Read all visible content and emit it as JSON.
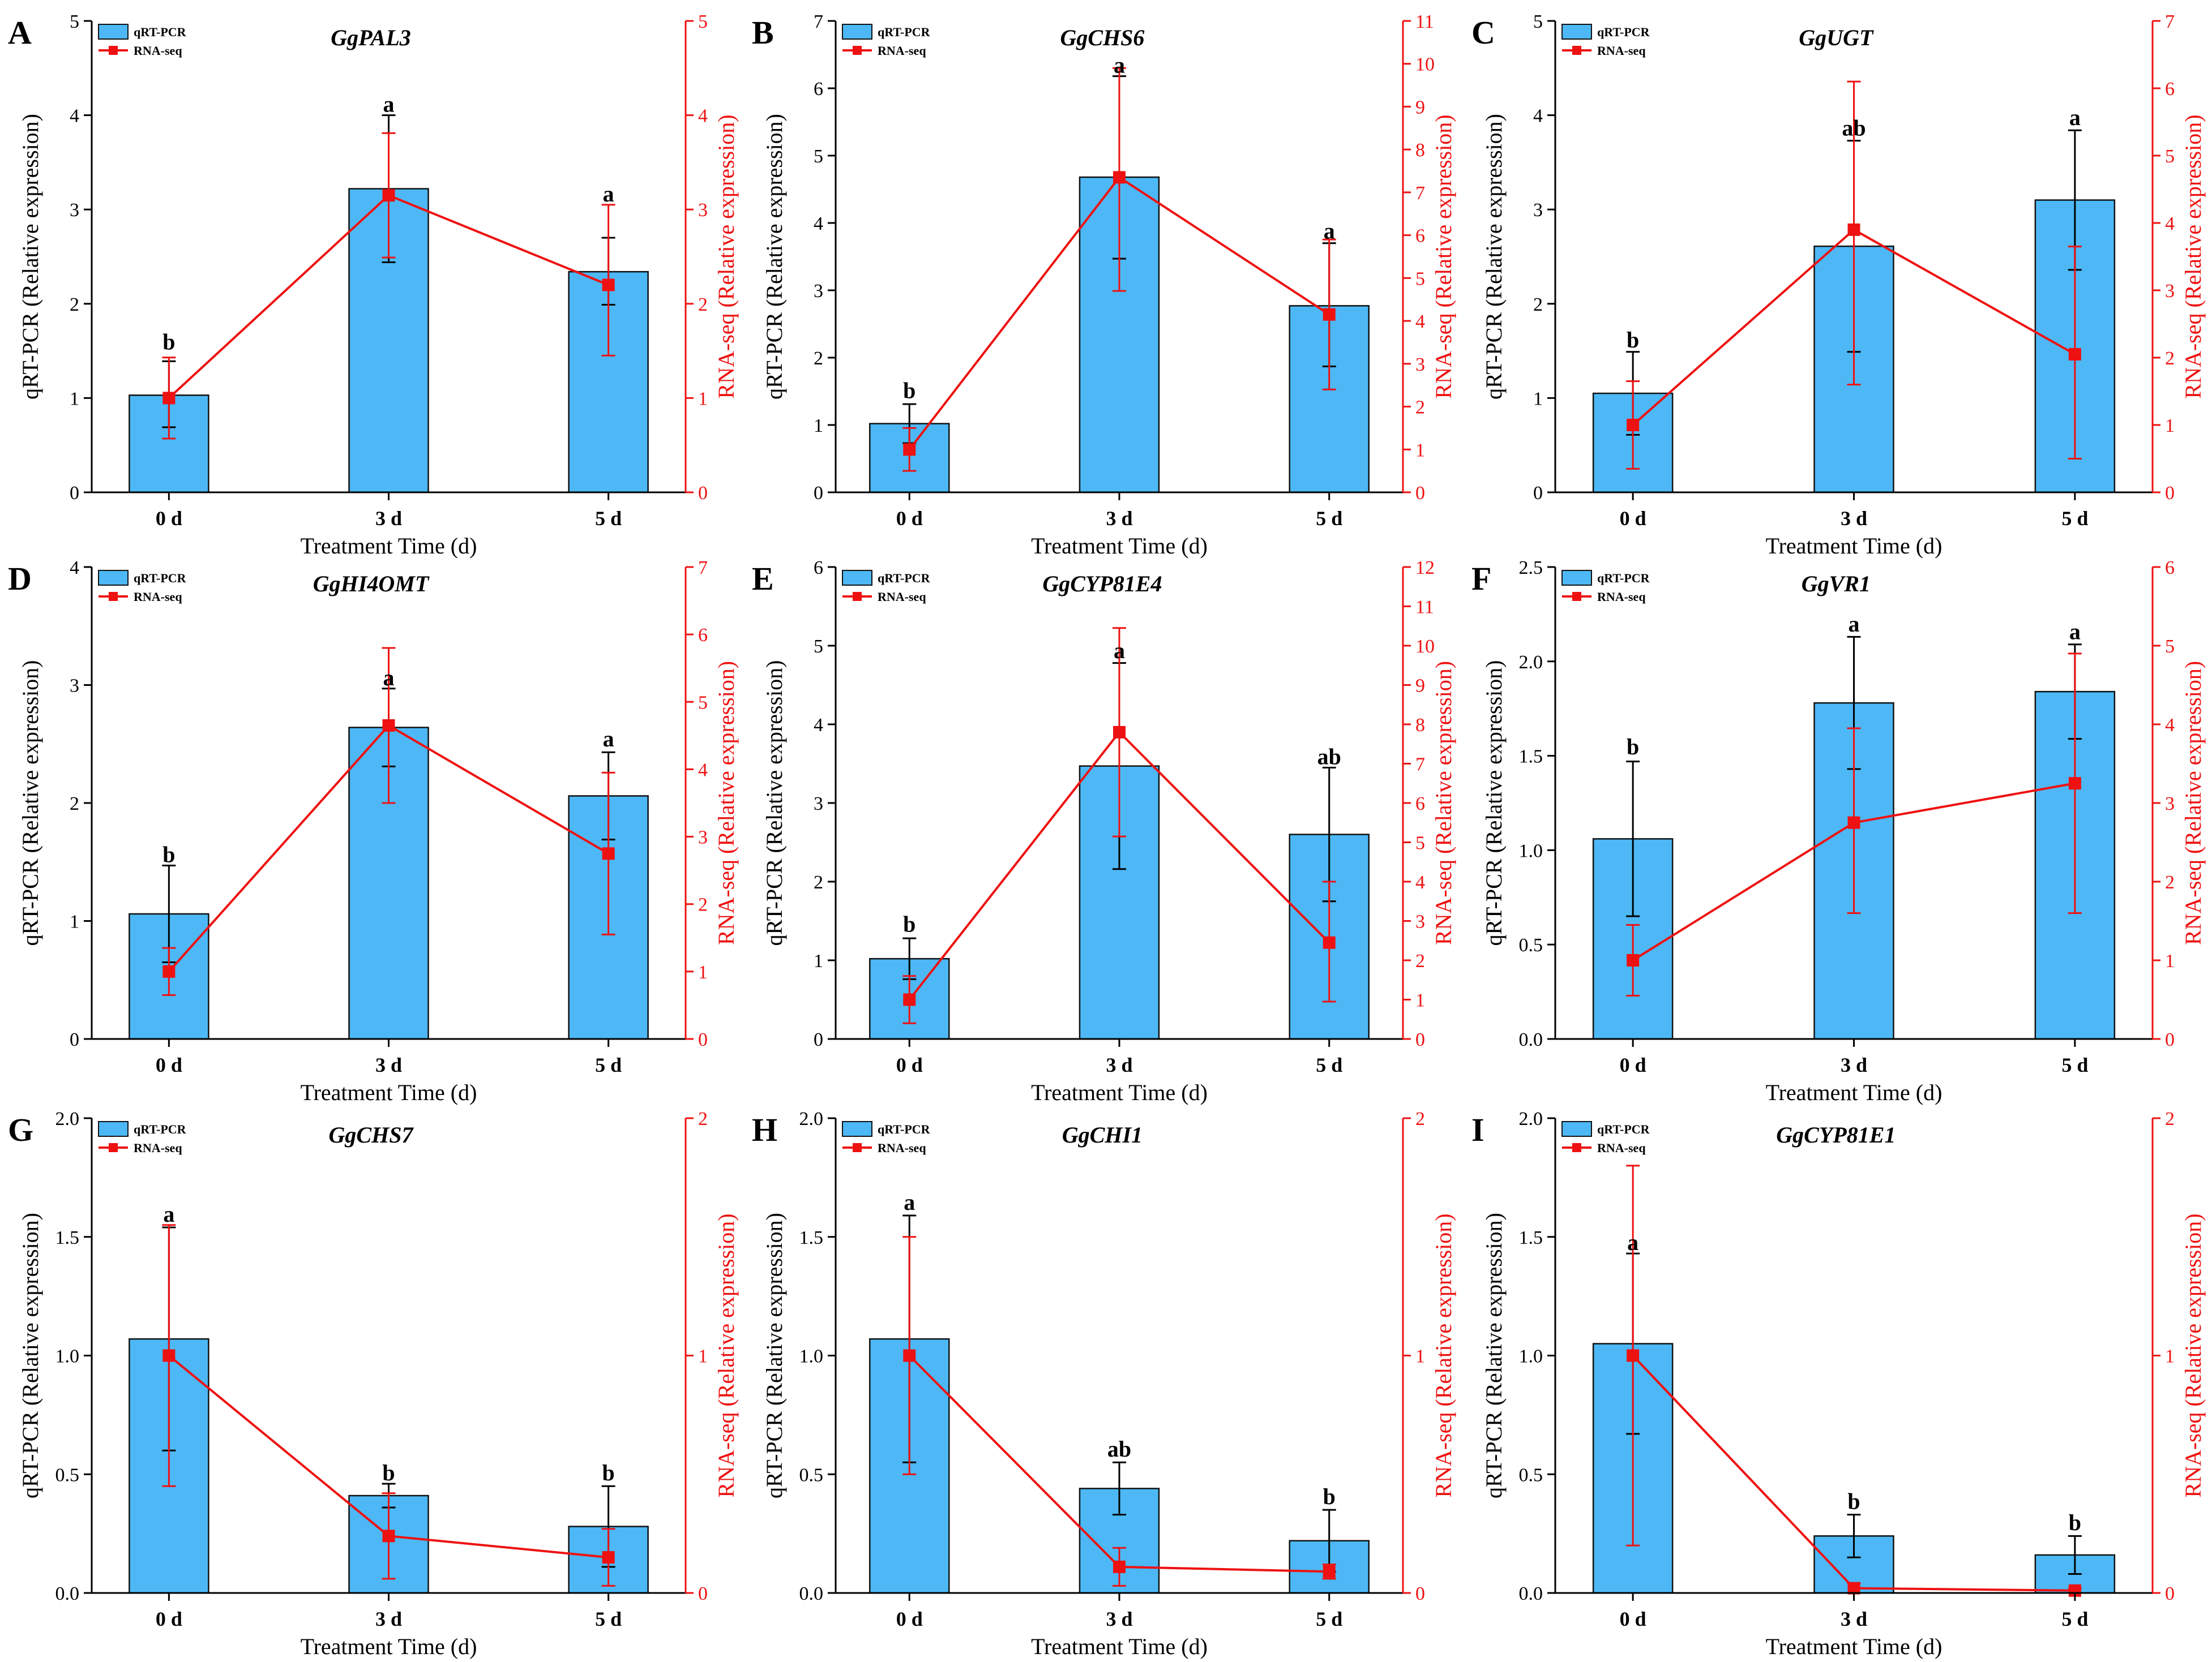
{
  "colors": {
    "bar": "#4DB8F5",
    "bar_stroke": "#111111",
    "line": "#EE1111",
    "axis": "#000000",
    "right_axis": "#EE1111"
  },
  "chart_data": [
    {
      "type": "bar+line",
      "panel": "A",
      "title": "GgPAL3",
      "xlabel": "Treatment Time (d)",
      "ylabel_left": "qRT-PCR (Relative expression)",
      "ylabel_right": "RNA-seq (Relative expression)",
      "categories": [
        "0 d",
        "3 d",
        "5 d"
      ],
      "left_ylim": [
        0,
        5
      ],
      "left_ticks": [
        0,
        1,
        2,
        3,
        4,
        5
      ],
      "left_tick_labels": [
        "0",
        "1",
        "2",
        "3",
        "4",
        "5"
      ],
      "right_ylim": [
        0,
        5
      ],
      "right_ticks": [
        0,
        1,
        2,
        3,
        4,
        5
      ],
      "right_tick_labels": [
        "0",
        "1",
        "2",
        "3",
        "4",
        "5"
      ],
      "series": [
        {
          "name": "qRT-PCR",
          "kind": "bar",
          "values": [
            1.03,
            3.22,
            2.34
          ],
          "err_lo": [
            0.69,
            2.44,
            1.99
          ],
          "err_hi": [
            1.39,
            4.0,
            2.7
          ]
        },
        {
          "name": "RNA-seq",
          "kind": "line",
          "values": [
            1.0,
            3.15,
            2.2
          ],
          "err_lo": [
            0.57,
            2.49,
            1.45
          ],
          "err_hi": [
            1.43,
            3.81,
            3.05
          ]
        }
      ],
      "letters": [
        "b",
        "a",
        "a"
      ],
      "letter_y": [
        1.48,
        4.0,
        3.05
      ],
      "legend": [
        "qRT-PCR",
        "RNA-seq"
      ]
    },
    {
      "type": "bar+line",
      "panel": "B",
      "title": "GgCHS6",
      "xlabel": "Treatment Time (d)",
      "ylabel_left": "qRT-PCR (Relative expression)",
      "ylabel_right": "RNA-seq (Relative expression)",
      "categories": [
        "0 d",
        "3 d",
        "5 d"
      ],
      "left_ylim": [
        0,
        7
      ],
      "left_ticks": [
        0,
        1,
        2,
        3,
        4,
        5,
        6,
        7
      ],
      "left_tick_labels": [
        "0",
        "1",
        "2",
        "3",
        "4",
        "5",
        "6",
        "7"
      ],
      "right_ylim": [
        0,
        11
      ],
      "right_ticks": [
        0,
        1,
        2,
        3,
        4,
        5,
        6,
        7,
        8,
        9,
        10,
        11
      ],
      "right_tick_labels": [
        "0",
        "1",
        "2",
        "3",
        "4",
        "5",
        "6",
        "7",
        "8",
        "9",
        "10",
        "11"
      ],
      "series": [
        {
          "name": "qRT-PCR",
          "kind": "bar",
          "values": [
            1.02,
            4.68,
            2.77
          ],
          "err_lo": [
            0.73,
            3.47,
            1.87
          ],
          "err_hi": [
            1.31,
            6.18,
            3.7
          ]
        },
        {
          "name": "RNA-seq",
          "kind": "line",
          "values": [
            1.0,
            7.35,
            4.15
          ],
          "err_lo": [
            0.5,
            4.7,
            2.4
          ],
          "err_hi": [
            1.5,
            9.9,
            5.9
          ]
        }
      ],
      "letters": [
        "b",
        "a",
        "a"
      ],
      "letter_y": [
        1.35,
        6.18,
        3.72
      ],
      "legend": [
        "qRT-PCR",
        "RNA-seq"
      ]
    },
    {
      "type": "bar+line",
      "panel": "C",
      "title": "GgUGT",
      "xlabel": "Treatment Time (d)",
      "ylabel_left": "qRT-PCR (Relative expression)",
      "ylabel_right": "RNA-seq (Relative expression)",
      "categories": [
        "0 d",
        "3 d",
        "5 d"
      ],
      "left_ylim": [
        0,
        5
      ],
      "left_ticks": [
        0,
        1,
        2,
        3,
        4,
        5
      ],
      "left_tick_labels": [
        "0",
        "1",
        "2",
        "3",
        "4",
        "5"
      ],
      "right_ylim": [
        0,
        7
      ],
      "right_ticks": [
        0,
        1,
        2,
        3,
        4,
        5,
        6,
        7
      ],
      "right_tick_labels": [
        "0",
        "1",
        "2",
        "3",
        "4",
        "5",
        "6",
        "7"
      ],
      "series": [
        {
          "name": "qRT-PCR",
          "kind": "bar",
          "values": [
            1.05,
            2.61,
            3.1
          ],
          "err_lo": [
            0.61,
            1.49,
            2.36
          ],
          "err_hi": [
            1.49,
            3.73,
            3.84
          ]
        },
        {
          "name": "RNA-seq",
          "kind": "line",
          "values": [
            1.0,
            3.9,
            2.05
          ],
          "err_lo": [
            0.35,
            1.6,
            0.5
          ],
          "err_hi": [
            1.65,
            6.1,
            3.65
          ]
        }
      ],
      "letters": [
        "b",
        "ab",
        "a"
      ],
      "letter_y": [
        1.5,
        3.75,
        3.86
      ],
      "legend": [
        "qRT-PCR",
        "RNA-seq"
      ]
    },
    {
      "type": "bar+line",
      "panel": "D",
      "title": "GgHI4OMT",
      "xlabel": "Treatment Time (d)",
      "ylabel_left": "qRT-PCR (Relative expression)",
      "ylabel_right": "RNA-seq (Relative expression)",
      "categories": [
        "0 d",
        "3 d",
        "5 d"
      ],
      "left_ylim": [
        0,
        4
      ],
      "left_ticks": [
        0,
        1,
        2,
        3,
        4
      ],
      "left_tick_labels": [
        "0",
        "1",
        "2",
        "3",
        "4"
      ],
      "right_ylim": [
        0,
        7
      ],
      "right_ticks": [
        0,
        1,
        2,
        3,
        4,
        5,
        6,
        7
      ],
      "right_tick_labels": [
        "0",
        "1",
        "2",
        "3",
        "4",
        "5",
        "6",
        "7"
      ],
      "series": [
        {
          "name": "qRT-PCR",
          "kind": "bar",
          "values": [
            1.06,
            2.64,
            2.06
          ],
          "err_lo": [
            0.65,
            2.31,
            1.69
          ],
          "err_hi": [
            1.47,
            2.97,
            2.43
          ]
        },
        {
          "name": "RNA-seq",
          "kind": "line",
          "values": [
            1.0,
            4.65,
            2.75
          ],
          "err_lo": [
            0.65,
            3.5,
            1.55
          ],
          "err_hi": [
            1.35,
            5.8,
            3.95
          ]
        }
      ],
      "letters": [
        "b",
        "a",
        "a"
      ],
      "letter_y": [
        1.47,
        2.97,
        2.45
      ],
      "legend": [
        "qRT-PCR",
        "RNA-seq"
      ]
    },
    {
      "type": "bar+line",
      "panel": "E",
      "title": "GgCYP81E4",
      "xlabel": "Treatment Time (d)",
      "ylabel_left": "qRT-PCR (Relative expression)",
      "ylabel_right": "RNA-seq (Relative expression)",
      "categories": [
        "0 d",
        "3 d",
        "5 d"
      ],
      "left_ylim": [
        0,
        6
      ],
      "left_ticks": [
        0,
        1,
        2,
        3,
        4,
        5,
        6
      ],
      "left_tick_labels": [
        "0",
        "1",
        "2",
        "3",
        "4",
        "5",
        "6"
      ],
      "right_ylim": [
        0,
        12
      ],
      "right_ticks": [
        0,
        1,
        2,
        3,
        4,
        5,
        6,
        7,
        8,
        9,
        10,
        11,
        12
      ],
      "right_tick_labels": [
        "0",
        "1",
        "2",
        "3",
        "4",
        "5",
        "6",
        "7",
        "8",
        "9",
        "10",
        "11",
        "12"
      ],
      "series": [
        {
          "name": "qRT-PCR",
          "kind": "bar",
          "values": [
            1.02,
            3.47,
            2.6
          ],
          "err_lo": [
            0.76,
            2.16,
            1.75
          ],
          "err_hi": [
            1.28,
            4.78,
            3.45
          ]
        },
        {
          "name": "RNA-seq",
          "kind": "line",
          "values": [
            1.0,
            7.8,
            2.45
          ],
          "err_lo": [
            0.4,
            5.15,
            0.95
          ],
          "err_hi": [
            1.6,
            10.45,
            4.0
          ]
        }
      ],
      "letters": [
        "b",
        "a",
        "ab"
      ],
      "letter_y": [
        1.32,
        4.8,
        3.45
      ],
      "legend": [
        "qRT-PCR",
        "RNA-seq"
      ]
    },
    {
      "type": "bar+line",
      "panel": "F",
      "title": "GgVR1",
      "xlabel": "Treatment Time (d)",
      "ylabel_left": "qRT-PCR (Relative expression)",
      "ylabel_right": "RNA-seq (Relative expression)",
      "categories": [
        "0 d",
        "3 d",
        "5 d"
      ],
      "left_ylim": [
        0,
        2.5
      ],
      "left_ticks": [
        0,
        0.5,
        1,
        1.5,
        2,
        2.5
      ],
      "left_tick_labels": [
        "0.0",
        "0.5",
        "1.0",
        "1.5",
        "2.0",
        "2.5"
      ],
      "right_ylim": [
        0,
        6
      ],
      "right_ticks": [
        0,
        1,
        2,
        3,
        4,
        5,
        6
      ],
      "right_tick_labels": [
        "0",
        "1",
        "2",
        "3",
        "4",
        "5",
        "6"
      ],
      "series": [
        {
          "name": "qRT-PCR",
          "kind": "bar",
          "values": [
            1.06,
            1.78,
            1.84
          ],
          "err_lo": [
            0.65,
            1.43,
            1.59
          ],
          "err_hi": [
            1.47,
            2.13,
            2.09
          ]
        },
        {
          "name": "RNA-seq",
          "kind": "line",
          "values": [
            1.0,
            2.75,
            3.25
          ],
          "err_lo": [
            0.55,
            1.6,
            1.6
          ],
          "err_hi": [
            1.45,
            3.95,
            4.9
          ]
        }
      ],
      "letters": [
        "b",
        "a",
        "a"
      ],
      "letter_y": [
        1.49,
        2.14,
        2.1
      ],
      "legend": [
        "qRT-PCR",
        "RNA-seq"
      ]
    },
    {
      "type": "bar+line",
      "panel": "G",
      "title": "GgCHS7",
      "xlabel": "Treatment Time (d)",
      "ylabel_left": "qRT-PCR (Relative expression)",
      "ylabel_right": "RNA-seq (Relative expression)",
      "categories": [
        "0 d",
        "3 d",
        "5 d"
      ],
      "left_ylim": [
        0,
        2
      ],
      "left_ticks": [
        0,
        0.5,
        1,
        1.5,
        2
      ],
      "left_tick_labels": [
        "0.0",
        "0.5",
        "1.0",
        "1.5",
        "2.0"
      ],
      "right_ylim": [
        0,
        2
      ],
      "right_ticks": [
        0,
        1,
        2
      ],
      "right_tick_labels": [
        "0",
        "1",
        "2"
      ],
      "series": [
        {
          "name": "qRT-PCR",
          "kind": "bar",
          "values": [
            1.07,
            0.41,
            0.28
          ],
          "err_lo": [
            0.6,
            0.36,
            0.11
          ],
          "err_hi": [
            1.54,
            0.46,
            0.45
          ]
        },
        {
          "name": "RNA-seq",
          "kind": "line",
          "values": [
            1.0,
            0.24,
            0.15
          ],
          "err_lo": [
            0.45,
            0.06,
            0.03
          ],
          "err_hi": [
            1.55,
            0.42,
            0.27
          ]
        }
      ],
      "letters": [
        "a",
        "b",
        "b"
      ],
      "letter_y": [
        1.55,
        0.46,
        0.46
      ],
      "legend": [
        "qRT-PCR",
        "RNA-seq"
      ]
    },
    {
      "type": "bar+line",
      "panel": "H",
      "title": "GgCHI1",
      "xlabel": "Treatment Time (d)",
      "ylabel_left": "qRT-PCR (Relative expression)",
      "ylabel_right": "RNA-seq (Relative expression)",
      "categories": [
        "0 d",
        "3 d",
        "5 d"
      ],
      "left_ylim": [
        0,
        2
      ],
      "left_ticks": [
        0,
        0.5,
        1,
        1.5,
        2
      ],
      "left_tick_labels": [
        "0.0",
        "0.5",
        "1.0",
        "1.5",
        "2.0"
      ],
      "right_ylim": [
        0,
        2
      ],
      "right_ticks": [
        0,
        1,
        2
      ],
      "right_tick_labels": [
        "0",
        "1",
        "2"
      ],
      "series": [
        {
          "name": "qRT-PCR",
          "kind": "bar",
          "values": [
            1.07,
            0.44,
            0.22
          ],
          "err_lo": [
            0.55,
            0.33,
            0.09
          ],
          "err_hi": [
            1.59,
            0.55,
            0.35
          ]
        },
        {
          "name": "RNA-seq",
          "kind": "line",
          "values": [
            1.0,
            0.11,
            0.09
          ],
          "err_lo": [
            0.5,
            0.03,
            0.06
          ],
          "err_hi": [
            1.5,
            0.19,
            0.12
          ]
        }
      ],
      "letters": [
        "a",
        "ab",
        "b"
      ],
      "letter_y": [
        1.6,
        0.56,
        0.36
      ],
      "legend": [
        "qRT-PCR",
        "RNA-seq"
      ]
    },
    {
      "type": "bar+line",
      "panel": "I",
      "title": "GgCYP81E1",
      "xlabel": "Treatment Time (d)",
      "ylabel_left": "qRT-PCR (Relative expression)",
      "ylabel_right": "RNA-seq (Relative expression)",
      "categories": [
        "0 d",
        "3 d",
        "5 d"
      ],
      "left_ylim": [
        0,
        2
      ],
      "left_ticks": [
        0,
        0.5,
        1,
        1.5,
        2
      ],
      "left_tick_labels": [
        "0.0",
        "0.5",
        "1.0",
        "1.5",
        "2.0"
      ],
      "right_ylim": [
        0,
        2
      ],
      "right_ticks": [
        0,
        1,
        2
      ],
      "right_tick_labels": [
        "0",
        "1",
        "2"
      ],
      "series": [
        {
          "name": "qRT-PCR",
          "kind": "bar",
          "values": [
            1.05,
            0.24,
            0.16
          ],
          "err_lo": [
            0.67,
            0.15,
            0.08
          ],
          "err_hi": [
            1.43,
            0.33,
            0.24
          ]
        },
        {
          "name": "RNA-seq",
          "kind": "line",
          "values": [
            1.0,
            0.02,
            0.01
          ],
          "err_lo": [
            0.2,
            0.0,
            0.0
          ],
          "err_hi": [
            1.8,
            0.04,
            0.02
          ]
        }
      ],
      "letters": [
        "a",
        "b",
        "b"
      ],
      "letter_y": [
        1.43,
        0.34,
        0.25
      ],
      "legend": [
        "qRT-PCR",
        "RNA-seq"
      ]
    }
  ]
}
